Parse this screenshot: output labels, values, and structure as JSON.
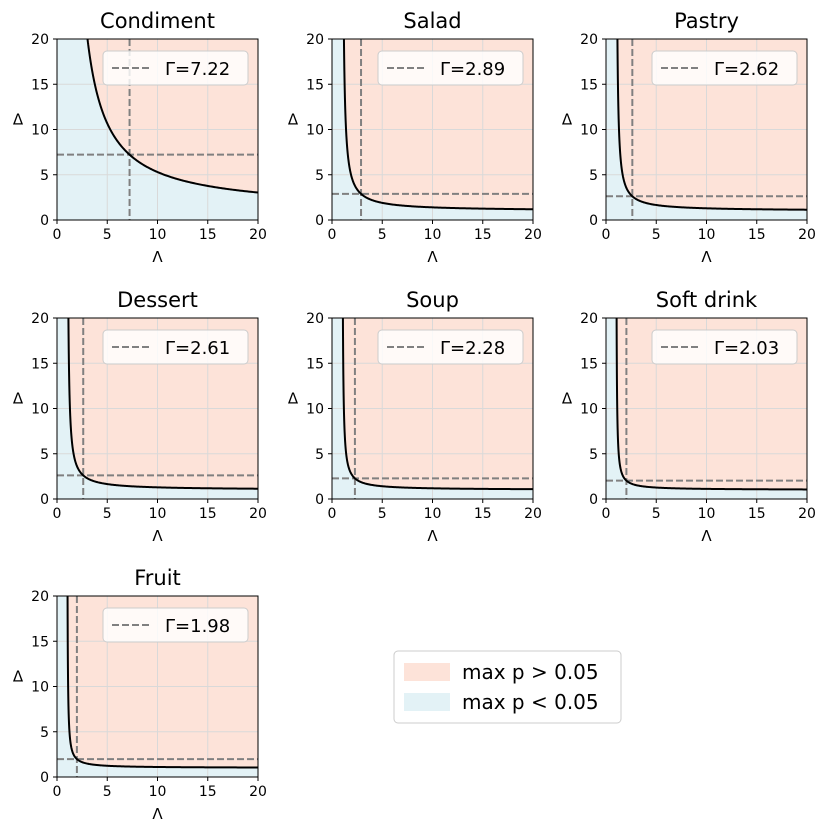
{
  "colors": {
    "above": "#fde3d9",
    "below": "#e3f2f6",
    "curve": "#000000",
    "dashed": "#808080",
    "grid": "#d9d9d9"
  },
  "chart_data": [
    {
      "type": "line",
      "title": "Condiment",
      "gamma": 7.22,
      "legend": "Γ=7.22",
      "xlabel": "Λ",
      "ylabel": "Δ",
      "xlim": [
        0,
        20
      ],
      "ylim": [
        0,
        20
      ],
      "xticks": [
        0,
        5,
        10,
        15,
        20
      ],
      "yticks": [
        0,
        5,
        10,
        15,
        20
      ]
    },
    {
      "type": "line",
      "title": "Salad",
      "gamma": 2.89,
      "legend": "Γ=2.89",
      "xlabel": "Λ",
      "ylabel": "Δ",
      "xlim": [
        0,
        20
      ],
      "ylim": [
        0,
        20
      ],
      "xticks": [
        0,
        5,
        10,
        15,
        20
      ],
      "yticks": [
        0,
        5,
        10,
        15,
        20
      ]
    },
    {
      "type": "line",
      "title": "Pastry",
      "gamma": 2.62,
      "legend": "Γ=2.62",
      "xlabel": "Λ",
      "ylabel": "Δ",
      "xlim": [
        0,
        20
      ],
      "ylim": [
        0,
        20
      ],
      "xticks": [
        0,
        5,
        10,
        15,
        20
      ],
      "yticks": [
        0,
        5,
        10,
        15,
        20
      ]
    },
    {
      "type": "line",
      "title": "Dessert",
      "gamma": 2.61,
      "legend": "Γ=2.61",
      "xlabel": "Λ",
      "ylabel": "Δ",
      "xlim": [
        0,
        20
      ],
      "ylim": [
        0,
        20
      ],
      "xticks": [
        0,
        5,
        10,
        15,
        20
      ],
      "yticks": [
        0,
        5,
        10,
        15,
        20
      ]
    },
    {
      "type": "line",
      "title": "Soup",
      "gamma": 2.28,
      "legend": "Γ=2.28",
      "xlabel": "Λ",
      "ylabel": "Δ",
      "xlim": [
        0,
        20
      ],
      "ylim": [
        0,
        20
      ],
      "xticks": [
        0,
        5,
        10,
        15,
        20
      ],
      "yticks": [
        0,
        5,
        10,
        15,
        20
      ]
    },
    {
      "type": "line",
      "title": "Soft drink",
      "gamma": 2.03,
      "legend": "Γ=2.03",
      "xlabel": "Λ",
      "ylabel": "Δ",
      "xlim": [
        0,
        20
      ],
      "ylim": [
        0,
        20
      ],
      "xticks": [
        0,
        5,
        10,
        15,
        20
      ],
      "yticks": [
        0,
        5,
        10,
        15,
        20
      ]
    },
    {
      "type": "line",
      "title": "Fruit",
      "gamma": 1.98,
      "legend": "Γ=1.98",
      "xlabel": "Λ",
      "ylabel": "Δ",
      "xlim": [
        0,
        20
      ],
      "ylim": [
        0,
        20
      ],
      "xticks": [
        0,
        5,
        10,
        15,
        20
      ],
      "yticks": [
        0,
        5,
        10,
        15,
        20
      ]
    }
  ],
  "shared_legend": {
    "items": [
      {
        "label": "max p > 0.05",
        "color": "#fde3d9"
      },
      {
        "label": "max p < 0.05",
        "color": "#e3f2f6"
      }
    ]
  }
}
